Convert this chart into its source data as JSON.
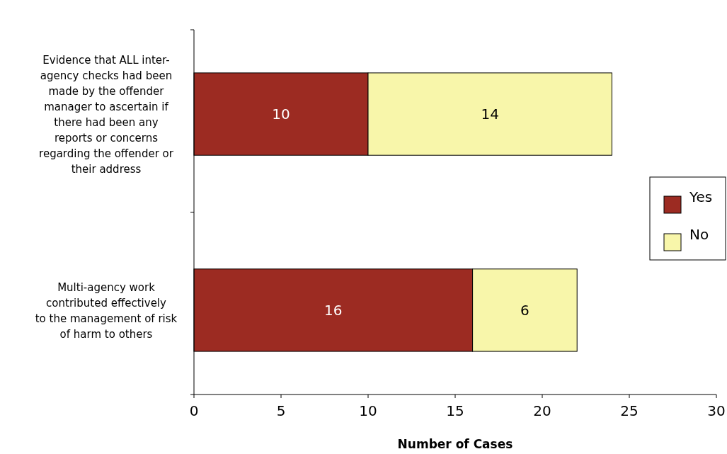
{
  "chart_data": {
    "type": "bar",
    "orientation": "horizontal",
    "stacked": true,
    "xlabel": "Number of Cases",
    "categories": [
      "Evidence that ALL inter-agency checks had been made by the offender manager to ascertain if there had been any reports or concerns regarding the offender or their address",
      "Multi-agency work contributed effectively to the management of risk of harm to others"
    ],
    "series": [
      {
        "name": "Yes",
        "color": "#9c2b22",
        "values": [
          10,
          16
        ]
      },
      {
        "name": "No",
        "color": "#f8f6aa",
        "values": [
          14,
          6
        ]
      }
    ],
    "xlim": [
      0,
      30
    ],
    "xticks": [
      0,
      5,
      10,
      15,
      20,
      25,
      30
    ],
    "data_labels": true,
    "legend": "right",
    "grid": false
  }
}
